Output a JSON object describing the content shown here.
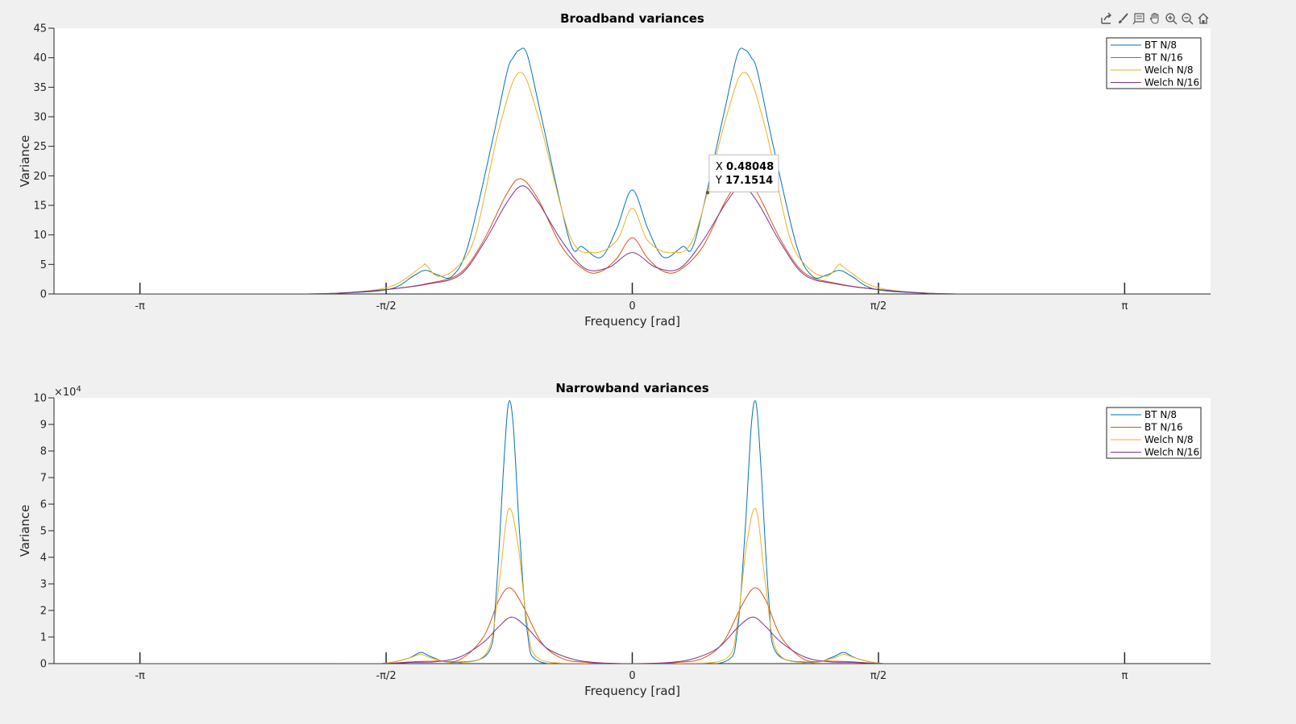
{
  "toolbar": {
    "icons": [
      "export-icon",
      "brush-icon",
      "datatip-icon",
      "pan-icon",
      "zoom-in-icon",
      "zoom-out-icon",
      "home-icon"
    ]
  },
  "colors": {
    "BT N/8": "#0072BD",
    "BT N/16": "#D95319",
    "Welch N/8": "#EDB120",
    "Welch N/16": "#7E2F8E"
  },
  "chart_data": [
    {
      "type": "line",
      "title": "Broadband variances",
      "xlabel": "Frequency [rad]",
      "ylabel": "Variance",
      "xlim": [
        -3.69,
        3.69
      ],
      "ylim": [
        0,
        45
      ],
      "yticks": [
        0,
        5,
        10,
        15,
        20,
        25,
        30,
        35,
        40,
        45
      ],
      "xtick_labels": [
        "-π",
        "-π/2",
        "0",
        "π/2",
        "π"
      ],
      "grid": false,
      "legend": "top-right",
      "data_tip": {
        "x_label": "X",
        "y_label": "Y",
        "x": "0.48048",
        "y": "17.1514"
      },
      "series": [
        {
          "name": "BT N/8",
          "x": [
            -3.14,
            -2.2,
            -1.9,
            -1.55,
            -1.4,
            -1.32,
            -1.24,
            -1.15,
            -1.05,
            -0.9,
            -0.8,
            -0.76,
            -0.72,
            -0.67,
            -0.58,
            -0.4,
            -0.32,
            -0.2,
            -0.1,
            0,
            0.1,
            0.2,
            0.32,
            0.4,
            0.58,
            0.67,
            0.72,
            0.76,
            0.8,
            0.9,
            1.05,
            1.15,
            1.24,
            1.32,
            1.4,
            1.55,
            1.9,
            2.2,
            3.14
          ],
          "y": [
            0,
            0,
            0.1,
            0.8,
            3.0,
            4.0,
            3.2,
            3.0,
            8.0,
            25,
            37.5,
            40.0,
            41.3,
            40.5,
            30,
            9,
            8,
            6.2,
            11,
            17.6,
            11,
            6.2,
            8,
            9,
            30,
            40.5,
            41.3,
            40.0,
            37.5,
            25,
            8.0,
            3.0,
            3.2,
            4.0,
            3.0,
            0.8,
            0.1,
            0,
            0
          ]
        },
        {
          "name": "BT N/16",
          "x": [
            -3.14,
            -2.2,
            -1.9,
            -1.55,
            -1.3,
            -1.1,
            -0.95,
            -0.8,
            -0.71,
            -0.6,
            -0.45,
            -0.3,
            -0.2,
            -0.1,
            0,
            0.1,
            0.2,
            0.3,
            0.45,
            0.6,
            0.71,
            0.8,
            0.95,
            1.1,
            1.3,
            1.55,
            1.9,
            2.2,
            3.14
          ],
          "y": [
            0,
            0,
            0.1,
            0.8,
            1.8,
            3.5,
            9,
            17,
            19.5,
            16,
            8,
            4,
            3.8,
            6,
            9.5,
            6,
            3.8,
            4,
            8,
            16,
            19.5,
            17,
            9,
            3.5,
            1.8,
            0.8,
            0.1,
            0,
            0
          ]
        },
        {
          "name": "Welch N/8",
          "x": [
            -3.14,
            -2.2,
            -1.9,
            -1.55,
            -1.35,
            -1.32,
            -1.24,
            -1.12,
            -1.0,
            -0.85,
            -0.72,
            -0.6,
            -0.4,
            -0.25,
            -0.1,
            0,
            0.1,
            0.25,
            0.4,
            0.6,
            0.72,
            0.85,
            1.0,
            1.12,
            1.24,
            1.32,
            1.35,
            1.55,
            1.9,
            2.2,
            3.14
          ],
          "y": [
            0,
            0,
            0.1,
            1.2,
            4.5,
            5.0,
            3.0,
            4.5,
            10,
            28,
            37.5,
            30,
            10,
            7,
            9,
            14.5,
            9,
            7,
            10,
            30,
            37.5,
            28,
            10,
            4.5,
            3.0,
            5.0,
            4.5,
            1.2,
            0.1,
            0,
            0
          ]
        },
        {
          "name": "Welch N/16",
          "x": [
            -3.14,
            -2.2,
            -1.9,
            -1.55,
            -1.3,
            -1.1,
            -0.95,
            -0.8,
            -0.7,
            -0.6,
            -0.45,
            -0.3,
            -0.15,
            0,
            0.15,
            0.3,
            0.45,
            0.6,
            0.7,
            0.8,
            0.95,
            1.1,
            1.3,
            1.55,
            1.9,
            2.2,
            3.14
          ],
          "y": [
            0,
            0,
            0.1,
            0.8,
            1.7,
            3.2,
            8.5,
            15.5,
            18.3,
            15.5,
            9,
            4.3,
            4.5,
            7,
            4.5,
            4.3,
            9,
            15.5,
            18.3,
            15.5,
            8.5,
            3.2,
            1.7,
            0.8,
            0.1,
            0,
            0
          ]
        }
      ]
    },
    {
      "type": "line",
      "title": "Narrowband variances",
      "xlabel": "Frequency [rad]",
      "ylabel": "Variance",
      "xlim": [
        -3.69,
        3.69
      ],
      "ylim": [
        0,
        100000
      ],
      "yticks": [
        0,
        10000,
        20000,
        30000,
        40000,
        50000,
        60000,
        70000,
        80000,
        90000,
        100000
      ],
      "ytick_labels": [
        "0",
        "1",
        "2",
        "3",
        "4",
        "5",
        "6",
        "7",
        "8",
        "9",
        "10"
      ],
      "y_exponent_base": "×10",
      "y_exponent": "4",
      "xtick_labels": [
        "-π",
        "-π/2",
        "0",
        "π/2",
        "π"
      ],
      "grid": false,
      "legend": "top-right",
      "series": [
        {
          "name": "BT N/8",
          "x": [
            -3.14,
            -1.9,
            -1.6,
            -1.43,
            -1.35,
            -1.28,
            -1.15,
            -0.92,
            -0.87,
            -0.82,
            -0.79,
            -0.76,
            -0.72,
            -0.67,
            -0.6,
            -0.3,
            0,
            0.3,
            0.6,
            0.67,
            0.72,
            0.76,
            0.79,
            0.82,
            0.87,
            0.92,
            1.15,
            1.28,
            1.35,
            1.43,
            1.6,
            1.9,
            3.14
          ],
          "y": [
            0,
            0,
            0,
            2000,
            4200,
            2500,
            500,
            4000,
            25000,
            75000,
            98000,
            90000,
            50000,
            12000,
            1000,
            0,
            0,
            0,
            1000,
            12000,
            50000,
            90000,
            98000,
            75000,
            25000,
            4000,
            500,
            2500,
            4200,
            2000,
            0,
            0,
            0
          ]
        },
        {
          "name": "BT N/16",
          "x": [
            -3.14,
            -1.9,
            -1.6,
            -1.4,
            -1.25,
            -1.1,
            -0.95,
            -0.85,
            -0.78,
            -0.7,
            -0.58,
            -0.45,
            -0.3,
            0,
            0.3,
            0.45,
            0.58,
            0.7,
            0.78,
            0.85,
            0.95,
            1.1,
            1.25,
            1.4,
            1.6,
            1.9,
            3.14
          ],
          "y": [
            0,
            0,
            0,
            700,
            1000,
            1500,
            10000,
            24000,
            28500,
            22000,
            8000,
            2000,
            500,
            0,
            500,
            2000,
            8000,
            22000,
            28500,
            24000,
            10000,
            1500,
            1000,
            700,
            0,
            0,
            0
          ]
        },
        {
          "name": "Welch N/8",
          "x": [
            -3.14,
            -1.9,
            -1.6,
            -1.43,
            -1.35,
            -1.28,
            -1.1,
            -0.92,
            -0.85,
            -0.79,
            -0.73,
            -0.67,
            -0.6,
            -0.3,
            0,
            0.3,
            0.6,
            0.67,
            0.73,
            0.79,
            0.85,
            0.92,
            1.1,
            1.28,
            1.35,
            1.43,
            1.6,
            1.9,
            3.14
          ],
          "y": [
            0,
            0,
            0,
            2000,
            3500,
            2000,
            300,
            5000,
            30000,
            58000,
            45000,
            15000,
            2000,
            0,
            0,
            0,
            2000,
            15000,
            45000,
            58000,
            30000,
            5000,
            300,
            2000,
            3500,
            2000,
            0,
            0,
            0
          ]
        },
        {
          "name": "Welch N/16",
          "x": [
            -3.14,
            -1.9,
            -1.6,
            -1.4,
            -1.25,
            -1.1,
            -0.95,
            -0.85,
            -0.77,
            -0.68,
            -0.55,
            -0.4,
            -0.25,
            0,
            0.25,
            0.4,
            0.55,
            0.68,
            0.77,
            0.85,
            0.95,
            1.1,
            1.25,
            1.4,
            1.6,
            1.9,
            3.14
          ],
          "y": [
            0,
            0,
            0,
            500,
            700,
            2500,
            8000,
            14000,
            17500,
            14000,
            6000,
            2000,
            500,
            0,
            500,
            2000,
            6000,
            14000,
            17500,
            14000,
            8000,
            2500,
            700,
            500,
            0,
            0,
            0
          ]
        }
      ]
    }
  ]
}
